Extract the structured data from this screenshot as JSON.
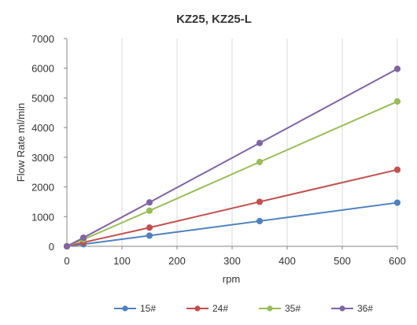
{
  "chart_data": {
    "type": "line",
    "title": "KZ25, KZ25-L",
    "xlabel": "rpm",
    "ylabel": "Flow Rate ml/min",
    "xlim": [
      0,
      600
    ],
    "ylim": [
      0,
      7000
    ],
    "x_ticks": [
      0,
      100,
      200,
      300,
      400,
      500,
      600
    ],
    "y_ticks": [
      0,
      1000,
      2000,
      3000,
      4000,
      5000,
      6000,
      7000
    ],
    "grid": "vertical",
    "legend": "bottom",
    "series": [
      {
        "name": "15#",
        "color": "#4f81bd",
        "x": [
          0,
          30,
          150,
          350,
          600
        ],
        "y": [
          0,
          70,
          360,
          850,
          1470
        ]
      },
      {
        "name": "24#",
        "color": "#c0504d",
        "x": [
          0,
          30,
          150,
          350,
          600
        ],
        "y": [
          0,
          130,
          630,
          1500,
          2580
        ]
      },
      {
        "name": "35#",
        "color": "#9bbb59",
        "x": [
          0,
          30,
          150,
          350,
          600
        ],
        "y": [
          0,
          230,
          1200,
          2840,
          4880
        ]
      },
      {
        "name": "36#",
        "color": "#8064a2",
        "x": [
          0,
          30,
          150,
          350,
          600
        ],
        "y": [
          0,
          290,
          1480,
          3480,
          5980
        ]
      }
    ]
  }
}
